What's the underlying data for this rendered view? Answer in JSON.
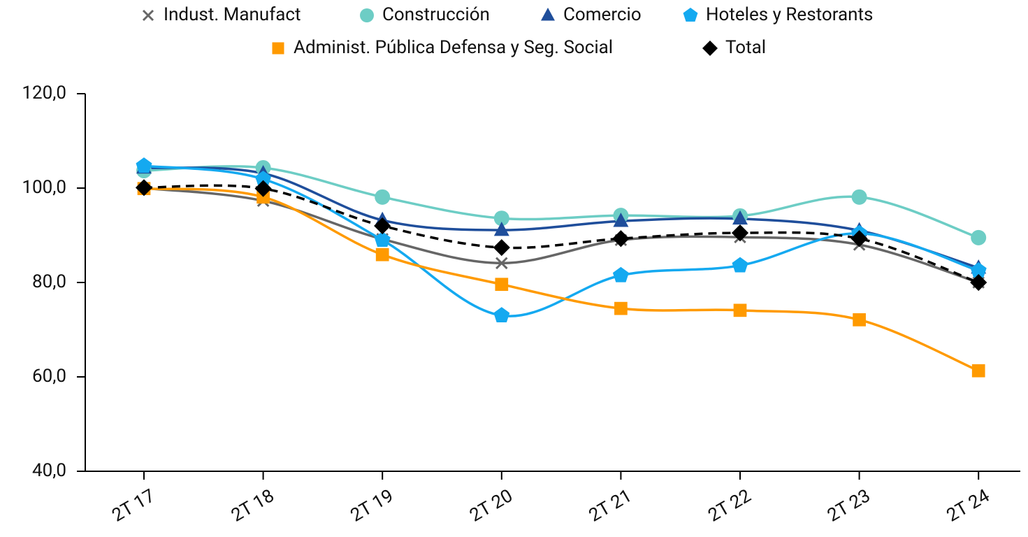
{
  "chart_data": {
    "type": "line",
    "categories": [
      "2T 17",
      "2T 18",
      "2T 19",
      "2T 20",
      "2T 21",
      "2T 22",
      "2T 23",
      "2T 24"
    ],
    "series": [
      {
        "name": "Indust. Manufact",
        "color": "#666666",
        "marker": "x",
        "values": [
          100.0,
          97.3,
          89.2,
          84.1,
          89.0,
          89.6,
          88.0,
          80.0
        ]
      },
      {
        "name": "Construcción",
        "color": "#6dcdc5",
        "marker": "circle",
        "values": [
          103.7,
          104.3,
          98.1,
          93.6,
          94.2,
          94.1,
          98.1,
          89.5
        ]
      },
      {
        "name": "Comercio",
        "color": "#1f4e9b",
        "marker": "triangle",
        "values": [
          104.3,
          103.1,
          93.2,
          91.1,
          93.0,
          93.5,
          91.0,
          83.1
        ]
      },
      {
        "name": "Hoteles y Restorants",
        "color": "#14a9f0",
        "marker": "pentagon",
        "values": [
          104.7,
          101.9,
          89.0,
          73.0,
          81.5,
          83.6,
          90.4,
          82.5
        ]
      },
      {
        "name": "Administ. Pública Defensa y Seg. Social",
        "color": "#ff9a00",
        "marker": "square",
        "values": [
          99.9,
          98.1,
          85.9,
          79.6,
          74.5,
          74.1,
          72.1,
          61.3
        ]
      },
      {
        "name": "Total",
        "color": "#000000",
        "marker": "diamond",
        "dash": true,
        "values": [
          100.1,
          99.9,
          92.0,
          87.4,
          89.3,
          90.5,
          89.3,
          80.0
        ]
      }
    ],
    "ylim": [
      40,
      120
    ],
    "yticks": [
      {
        "value": 40,
        "label": "40,0"
      },
      {
        "value": 60,
        "label": "60,0"
      },
      {
        "value": 80,
        "label": "80,0"
      },
      {
        "value": 100,
        "label": "100,0"
      },
      {
        "value": 120,
        "label": "120,0"
      }
    ],
    "smooth": true,
    "grid": false
  }
}
